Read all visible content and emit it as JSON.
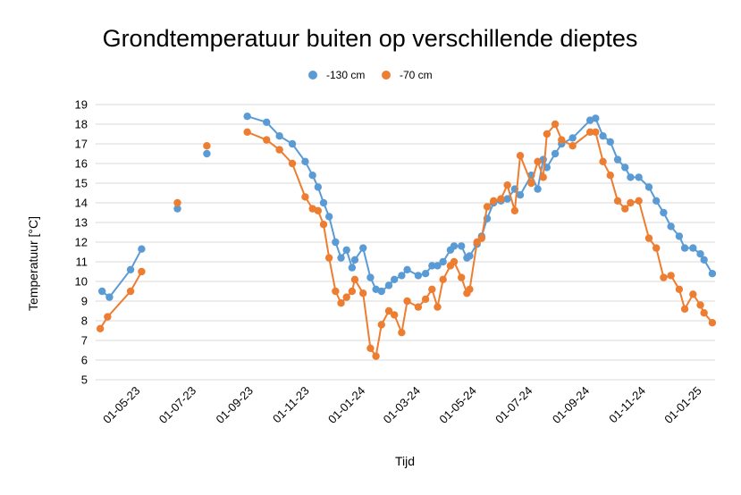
{
  "chart_data": {
    "type": "line",
    "title": "Grondtemperatuur buiten op verschillende dieptes",
    "xlabel": "Tijd",
    "ylabel": "Temperatuur [°C]",
    "ylim": [
      5,
      19
    ],
    "yticks": [
      5,
      6,
      7,
      8,
      9,
      10,
      11,
      12,
      13,
      14,
      15,
      16,
      17,
      18,
      19
    ],
    "xlim": [
      "2023-03-13",
      "2025-01-15"
    ],
    "xticks": [
      {
        "date": "2023-05-01",
        "label": "01-05-23"
      },
      {
        "date": "2023-07-01",
        "label": "01-07-23"
      },
      {
        "date": "2023-09-01",
        "label": "01-09-23"
      },
      {
        "date": "2023-11-01",
        "label": "01-11-23"
      },
      {
        "date": "2024-01-01",
        "label": "01-01-24"
      },
      {
        "date": "2024-03-01",
        "label": "01-03-24"
      },
      {
        "date": "2024-05-01",
        "label": "01-05-24"
      },
      {
        "date": "2024-07-01",
        "label": "01-07-24"
      },
      {
        "date": "2024-09-01",
        "label": "01-09-24"
      },
      {
        "date": "2024-11-01",
        "label": "01-11-24"
      },
      {
        "date": "2025-01-01",
        "label": "01-01-25"
      }
    ],
    "grid": "horizontal",
    "legend": "top-center",
    "series": [
      {
        "name": "-130 cm",
        "color": "#5B9BD5",
        "points": [
          [
            "2023-03-20",
            9.5
          ],
          [
            "2023-03-28",
            9.2
          ],
          [
            "2023-04-20",
            10.6
          ],
          [
            "2023-05-02",
            11.65
          ],
          [
            "2023-06-10",
            13.7
          ],
          [
            "2023-07-12",
            16.5
          ],
          [
            "2023-08-25",
            18.4
          ],
          [
            "2023-09-15",
            18.1
          ],
          [
            "2023-09-29",
            17.4
          ],
          [
            "2023-10-13",
            17.0
          ],
          [
            "2023-10-27",
            16.1
          ],
          [
            "2023-11-04",
            15.4
          ],
          [
            "2023-11-10",
            14.8
          ],
          [
            "2023-11-16",
            14.0
          ],
          [
            "2023-11-22",
            13.3
          ],
          [
            "2023-11-29",
            12.0
          ],
          [
            "2023-12-05",
            11.2
          ],
          [
            "2023-12-11",
            11.6
          ],
          [
            "2023-12-17",
            10.7
          ],
          [
            "2023-12-20",
            11.1
          ],
          [
            "2023-12-29",
            11.7
          ],
          [
            "2024-01-06",
            10.2
          ],
          [
            "2024-01-12",
            9.6
          ],
          [
            "2024-01-18",
            9.5
          ],
          [
            "2024-01-26",
            9.8
          ],
          [
            "2024-02-01",
            10.1
          ],
          [
            "2024-02-09",
            10.3
          ],
          [
            "2024-02-15",
            10.6
          ],
          [
            "2024-02-27",
            10.3
          ],
          [
            "2024-03-06",
            10.4
          ],
          [
            "2024-03-13",
            10.8
          ],
          [
            "2024-03-19",
            10.8
          ],
          [
            "2024-03-25",
            11.0
          ],
          [
            "2024-04-02",
            11.6
          ],
          [
            "2024-04-06",
            11.8
          ],
          [
            "2024-04-14",
            11.8
          ],
          [
            "2024-04-20",
            11.2
          ],
          [
            "2024-04-23",
            11.3
          ],
          [
            "2024-05-01",
            11.9
          ],
          [
            "2024-05-06",
            12.3
          ],
          [
            "2024-05-12",
            13.2
          ],
          [
            "2024-05-19",
            14.0
          ],
          [
            "2024-05-27",
            14.1
          ],
          [
            "2024-06-03",
            14.2
          ],
          [
            "2024-06-11",
            14.7
          ],
          [
            "2024-06-17",
            14.4
          ],
          [
            "2024-06-29",
            15.4
          ],
          [
            "2024-07-06",
            14.7
          ],
          [
            "2024-07-12",
            16.2
          ],
          [
            "2024-07-16",
            15.8
          ],
          [
            "2024-07-25",
            16.5
          ],
          [
            "2024-08-01",
            17.0
          ],
          [
            "2024-08-13",
            17.3
          ],
          [
            "2024-09-01",
            18.2
          ],
          [
            "2024-09-07",
            18.3
          ],
          [
            "2024-09-15",
            17.4
          ],
          [
            "2024-09-23",
            17.1
          ],
          [
            "2024-10-01",
            16.2
          ],
          [
            "2024-10-09",
            15.8
          ],
          [
            "2024-10-15",
            15.3
          ],
          [
            "2024-10-24",
            15.3
          ],
          [
            "2024-11-04",
            14.8
          ],
          [
            "2024-11-12",
            14.1
          ],
          [
            "2024-11-20",
            13.5
          ],
          [
            "2024-11-28",
            12.8
          ],
          [
            "2024-12-07",
            12.3
          ],
          [
            "2024-12-13",
            11.7
          ],
          [
            "2024-12-22",
            11.7
          ],
          [
            "2024-12-30",
            11.4
          ],
          [
            "2025-01-03",
            11.1
          ],
          [
            "2025-01-12",
            10.4
          ]
        ]
      },
      {
        "name": "-70 cm",
        "color": "#ED7D31",
        "points": [
          [
            "2023-03-18",
            7.6
          ],
          [
            "2023-03-26",
            8.2
          ],
          [
            "2023-04-20",
            9.5
          ],
          [
            "2023-05-02",
            10.5
          ],
          [
            "2023-06-10",
            14.0
          ],
          [
            "2023-07-12",
            16.9
          ],
          [
            "2023-08-25",
            17.6
          ],
          [
            "2023-09-15",
            17.2
          ],
          [
            "2023-09-29",
            16.7
          ],
          [
            "2023-10-13",
            16.0
          ],
          [
            "2023-10-27",
            14.3
          ],
          [
            "2023-11-04",
            13.7
          ],
          [
            "2023-11-10",
            13.6
          ],
          [
            "2023-11-16",
            12.9
          ],
          [
            "2023-11-22",
            11.2
          ],
          [
            "2023-11-29",
            9.5
          ],
          [
            "2023-12-05",
            8.9
          ],
          [
            "2023-12-11",
            9.2
          ],
          [
            "2023-12-17",
            9.5
          ],
          [
            "2023-12-20",
            10.1
          ],
          [
            "2023-12-29",
            9.4
          ],
          [
            "2024-01-06",
            6.6
          ],
          [
            "2024-01-12",
            6.2
          ],
          [
            "2024-01-18",
            7.8
          ],
          [
            "2024-01-26",
            8.5
          ],
          [
            "2024-02-01",
            8.3
          ],
          [
            "2024-02-09",
            7.4
          ],
          [
            "2024-02-15",
            9.0
          ],
          [
            "2024-02-27",
            8.7
          ],
          [
            "2024-03-06",
            9.1
          ],
          [
            "2024-03-13",
            9.6
          ],
          [
            "2024-03-19",
            8.7
          ],
          [
            "2024-03-25",
            10.1
          ],
          [
            "2024-04-02",
            10.8
          ],
          [
            "2024-04-06",
            11.0
          ],
          [
            "2024-04-14",
            10.2
          ],
          [
            "2024-04-20",
            9.4
          ],
          [
            "2024-04-23",
            9.6
          ],
          [
            "2024-05-01",
            12.0
          ],
          [
            "2024-05-06",
            12.2
          ],
          [
            "2024-05-12",
            13.8
          ],
          [
            "2024-05-19",
            14.1
          ],
          [
            "2024-05-27",
            14.2
          ],
          [
            "2024-06-03",
            14.9
          ],
          [
            "2024-06-11",
            13.6
          ],
          [
            "2024-06-17",
            16.4
          ],
          [
            "2024-06-29",
            15.0
          ],
          [
            "2024-07-06",
            16.1
          ],
          [
            "2024-07-12",
            15.3
          ],
          [
            "2024-07-16",
            17.5
          ],
          [
            "2024-07-25",
            18.0
          ],
          [
            "2024-08-01",
            17.2
          ],
          [
            "2024-08-13",
            16.9
          ],
          [
            "2024-09-01",
            17.6
          ],
          [
            "2024-09-07",
            17.6
          ],
          [
            "2024-09-15",
            16.1
          ],
          [
            "2024-09-23",
            15.4
          ],
          [
            "2024-10-01",
            14.1
          ],
          [
            "2024-10-09",
            13.7
          ],
          [
            "2024-10-15",
            14.0
          ],
          [
            "2024-10-24",
            14.1
          ],
          [
            "2024-11-04",
            12.2
          ],
          [
            "2024-11-12",
            11.7
          ],
          [
            "2024-11-20",
            10.2
          ],
          [
            "2024-11-28",
            10.3
          ],
          [
            "2024-12-07",
            9.6
          ],
          [
            "2024-12-13",
            8.6
          ],
          [
            "2024-12-22",
            9.35
          ],
          [
            "2024-12-30",
            8.8
          ],
          [
            "2025-01-03",
            8.4
          ],
          [
            "2025-01-12",
            7.9
          ]
        ]
      }
    ]
  }
}
